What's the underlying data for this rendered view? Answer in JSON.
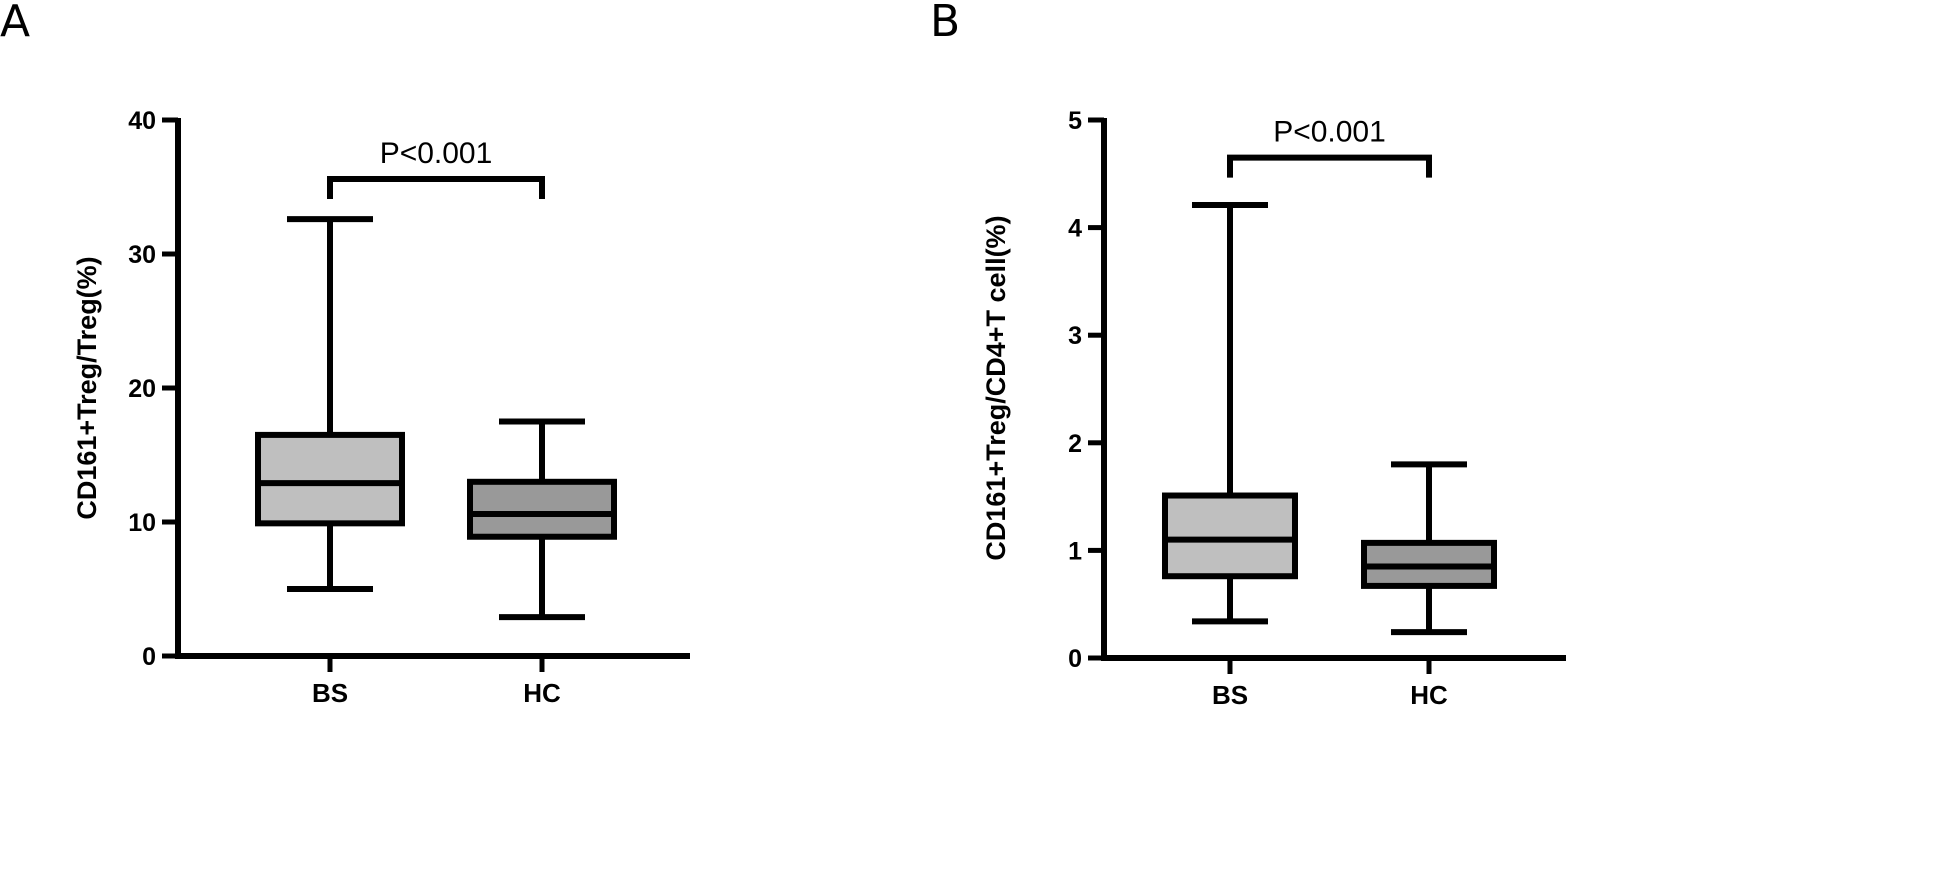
{
  "chart_data": [
    {
      "type": "box",
      "panel_label": "A",
      "ylabel": "CD161+Treg/Treg(%)",
      "ylim": [
        0,
        40
      ],
      "yticks": [
        0,
        10,
        20,
        30,
        40
      ],
      "categories": [
        "BS",
        "HC"
      ],
      "boxes": [
        {
          "category": "BS",
          "min": 5.0,
          "q1": 9.9,
          "median": 12.9,
          "q3": 16.5,
          "max": 32.6,
          "color": "#bfbfbf"
        },
        {
          "category": "HC",
          "min": 2.9,
          "q1": 8.9,
          "median": 10.6,
          "q3": 13.0,
          "max": 17.5,
          "color": "#999999"
        }
      ],
      "annotation": {
        "text": "P<0.001",
        "between": [
          "BS",
          "HC"
        ],
        "level": 35.6
      }
    },
    {
      "type": "box",
      "panel_label": "B",
      "ylabel": "CD161+Treg/CD4+T cell(%)",
      "ylim": [
        0,
        5
      ],
      "yticks": [
        0,
        1,
        2,
        3,
        4,
        5
      ],
      "categories": [
        "BS",
        "HC"
      ],
      "boxes": [
        {
          "category": "BS",
          "min": 0.34,
          "q1": 0.76,
          "median": 1.1,
          "q3": 1.51,
          "max": 4.21,
          "color": "#bfbfbf"
        },
        {
          "category": "HC",
          "min": 0.24,
          "q1": 0.67,
          "median": 0.85,
          "q3": 1.07,
          "max": 1.8,
          "color": "#999999"
        }
      ],
      "annotation": {
        "text": "P<0.001",
        "between": [
          "BS",
          "HC"
        ],
        "level": 4.65
      }
    }
  ]
}
